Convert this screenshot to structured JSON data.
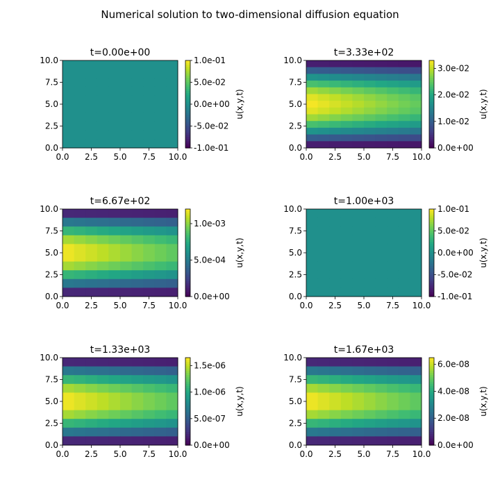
{
  "figure": {
    "suptitle": "Numerical solution to two-dimensional diffusion equation"
  },
  "chart_data": [
    {
      "type": "heatmap",
      "title": "t=0.00e+00",
      "xlim": [
        0,
        10
      ],
      "ylim": [
        0,
        10
      ],
      "x_ticks": [
        "0.0",
        "2.5",
        "5.0",
        "7.5",
        "10.0"
      ],
      "y_ticks": [
        "0.0",
        "2.5",
        "5.0",
        "7.5",
        "10.0"
      ],
      "colorbar_label": "u(x,y,t)",
      "colorbar_range": [
        -0.1,
        0.1
      ],
      "colorbar_ticks": [
        {
          "value": 0.1,
          "label": "1.0e-01"
        },
        {
          "value": 0.05,
          "label": "5.0e-02"
        },
        {
          "value": 0.0,
          "label": "0.0e+00"
        },
        {
          "value": -0.05,
          "label": "-5.0e-02"
        },
        {
          "value": -0.1,
          "label": "-1.0e-01"
        }
      ],
      "grid_size": [
        10,
        10
      ],
      "vmax": 0.0,
      "mode": "uniform",
      "colormap": "viridis"
    },
    {
      "type": "heatmap",
      "title": "t=3.33e+02",
      "xlim": [
        0,
        10
      ],
      "ylim": [
        0,
        10
      ],
      "x_ticks": [
        "0.0",
        "2.5",
        "5.0",
        "7.5",
        "10.0"
      ],
      "y_ticks": [
        "0.0",
        "2.5",
        "5.0",
        "7.5",
        "10.0"
      ],
      "colorbar_label": "u(x,y,t)",
      "colorbar_range": [
        0,
        0.033
      ],
      "colorbar_ticks": [
        {
          "value": 0.03,
          "label": "3.0e-02"
        },
        {
          "value": 0.02,
          "label": "2.0e-02"
        },
        {
          "value": 0.01,
          "label": "1.0e-02"
        },
        {
          "value": 0.0,
          "label": "0.0e+00"
        }
      ],
      "grid_size": [
        13,
        10
      ],
      "vmax": 0.033,
      "mode": "sine",
      "colormap": "viridis"
    },
    {
      "type": "heatmap",
      "title": "t=6.67e+02",
      "xlim": [
        0,
        10
      ],
      "ylim": [
        0,
        10
      ],
      "x_ticks": [
        "0.0",
        "2.5",
        "5.0",
        "7.5",
        "10.0"
      ],
      "y_ticks": [
        "0.0",
        "2.5",
        "5.0",
        "7.5",
        "10.0"
      ],
      "colorbar_label": "u(x,y,t)",
      "colorbar_range": [
        0,
        0.0012
      ],
      "colorbar_ticks": [
        {
          "value": 0.001,
          "label": "1.0e-03"
        },
        {
          "value": 0.0005,
          "label": "5.0e-04"
        },
        {
          "value": 0.0,
          "label": "0.0e+00"
        }
      ],
      "grid_size": [
        10,
        10
      ],
      "vmax": 0.0012,
      "mode": "sine",
      "colormap": "viridis"
    },
    {
      "type": "heatmap",
      "title": "t=1.00e+03",
      "xlim": [
        0,
        10
      ],
      "ylim": [
        0,
        10
      ],
      "x_ticks": [
        "0.0",
        "2.5",
        "5.0",
        "7.5",
        "10.0"
      ],
      "y_ticks": [
        "0.0",
        "2.5",
        "5.0",
        "7.5",
        "10.0"
      ],
      "colorbar_label": "u(x,y,t)",
      "colorbar_range": [
        -0.1,
        0.1
      ],
      "colorbar_ticks": [
        {
          "value": 0.1,
          "label": "1.0e-01"
        },
        {
          "value": 0.05,
          "label": "5.0e-02"
        },
        {
          "value": 0.0,
          "label": "0.0e+00"
        },
        {
          "value": -0.05,
          "label": "-5.0e-02"
        },
        {
          "value": -0.1,
          "label": "-1.0e-01"
        }
      ],
      "grid_size": [
        10,
        10
      ],
      "vmax": 0.0,
      "mode": "uniform",
      "colormap": "viridis"
    },
    {
      "type": "heatmap",
      "title": "t=1.33e+03",
      "xlim": [
        0,
        10
      ],
      "ylim": [
        0,
        10
      ],
      "x_ticks": [
        "0.0",
        "2.5",
        "5.0",
        "7.5",
        "10.0"
      ],
      "y_ticks": [
        "0.0",
        "2.5",
        "5.0",
        "7.5",
        "10.0"
      ],
      "colorbar_label": "u(x,y,t)",
      "colorbar_range": [
        0,
        1.65e-06
      ],
      "colorbar_ticks": [
        {
          "value": 1.5e-06,
          "label": "1.5e-06"
        },
        {
          "value": 1e-06,
          "label": "1.0e-06"
        },
        {
          "value": 5e-07,
          "label": "5.0e-07"
        },
        {
          "value": 0.0,
          "label": "0.0e+00"
        }
      ],
      "grid_size": [
        10,
        10
      ],
      "vmax": 1.65e-06,
      "mode": "sine",
      "colormap": "viridis"
    },
    {
      "type": "heatmap",
      "title": "t=1.67e+03",
      "xlim": [
        0,
        10
      ],
      "ylim": [
        0,
        10
      ],
      "x_ticks": [
        "0.0",
        "2.5",
        "5.0",
        "7.5",
        "10.0"
      ],
      "y_ticks": [
        "0.0",
        "2.5",
        "5.0",
        "7.5",
        "10.0"
      ],
      "colorbar_label": "u(x,y,t)",
      "colorbar_range": [
        0,
        6.5e-08
      ],
      "colorbar_ticks": [
        {
          "value": 6e-08,
          "label": "6.0e-08"
        },
        {
          "value": 4e-08,
          "label": "4.0e-08"
        },
        {
          "value": 2e-08,
          "label": "2.0e-08"
        },
        {
          "value": 0.0,
          "label": "0.0e+00"
        }
      ],
      "grid_size": [
        10,
        10
      ],
      "vmax": 6.5e-08,
      "mode": "sine",
      "colormap": "viridis"
    }
  ]
}
